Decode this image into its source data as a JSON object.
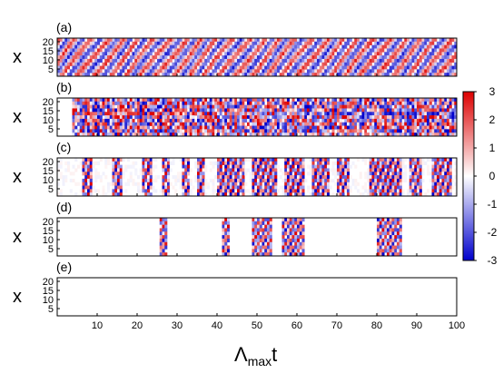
{
  "chart_data": {
    "type": "heatmap",
    "panels": [
      {
        "label": "(a)",
        "ylabel": "x",
        "yticks": [
          "5",
          "10",
          "15",
          "20"
        ]
      },
      {
        "label": "(b)",
        "ylabel": "x",
        "yticks": [
          "5",
          "10",
          "15",
          "20"
        ]
      },
      {
        "label": "(c)",
        "ylabel": "x",
        "yticks": [
          "5",
          "10",
          "15",
          "20"
        ]
      },
      {
        "label": "(d)",
        "ylabel": "x",
        "yticks": [
          "5",
          "10",
          "15",
          "20"
        ]
      },
      {
        "label": "(e)",
        "ylabel": "x",
        "yticks": [
          "5",
          "10",
          "15",
          "20"
        ]
      }
    ],
    "x_ticks": [
      "10",
      "20",
      "30",
      "40",
      "50",
      "60",
      "70",
      "80",
      "90",
      "100"
    ],
    "x_tick_values": [
      10,
      20,
      30,
      40,
      50,
      60,
      70,
      80,
      90,
      100
    ],
    "xlim": [
      0,
      100
    ],
    "ylim": [
      1,
      22
    ],
    "xlabel": {
      "main": "Λ",
      "sub": "max",
      "tail": "t"
    },
    "colorbar": {
      "ticks": [
        "3",
        "2",
        "1",
        "0",
        "-1",
        "-2",
        "-3"
      ],
      "tick_values": [
        3,
        2,
        1,
        0,
        -1,
        -2,
        -3
      ],
      "range": [
        -3,
        3
      ],
      "colors": {
        "low": "#0000cc",
        "mid": "#ffffff",
        "high": "#dd0000"
      }
    },
    "activity": {
      "a": "dense diagonal stripes across full time range",
      "b": "dense turbulent pattern from t≈4 to 100",
      "c": "intermittent vertical bursts",
      "d": "sparse bursts near t≈26, 41-62, 80-86",
      "e": "nearly uniform zero"
    },
    "bursts_c": [
      [
        6,
        9
      ],
      [
        14,
        16
      ],
      [
        21,
        24
      ],
      [
        26,
        28
      ],
      [
        31,
        33
      ],
      [
        35,
        37
      ],
      [
        40,
        47
      ],
      [
        49,
        55
      ],
      [
        57,
        62
      ],
      [
        64,
        68
      ],
      [
        70,
        73
      ],
      [
        78,
        86
      ],
      [
        88,
        91
      ],
      [
        94,
        99
      ]
    ],
    "bursts_d": [
      [
        25.5,
        27.5
      ],
      [
        41,
        43
      ],
      [
        49,
        54
      ],
      [
        56,
        62
      ],
      [
        80,
        86
      ]
    ]
  }
}
